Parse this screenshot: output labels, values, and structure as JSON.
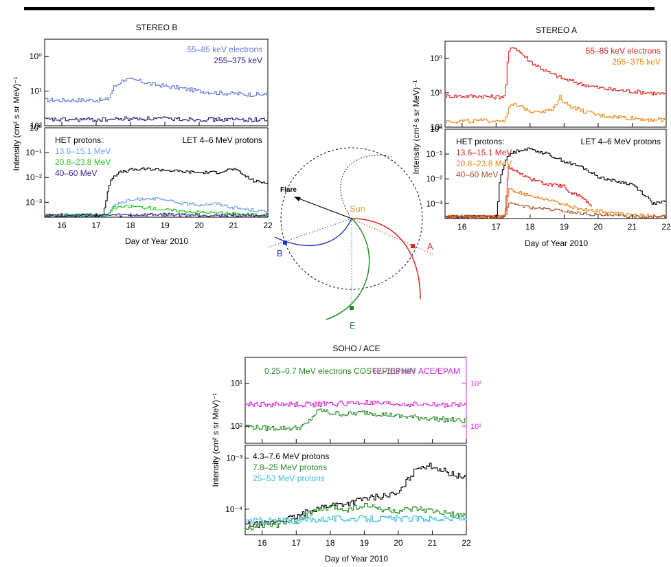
{
  "chart_data": [
    {
      "id": "stereo_b",
      "type": "line",
      "title": "STEREO B",
      "xlabel": "Day of Year 2010",
      "ylabel": "Intensity   (cm² s sr MeV)⁻¹",
      "xlim": [
        15.5,
        22
      ],
      "x_ticks": [
        "16",
        "17",
        "18",
        "19",
        "20",
        "21",
        "22"
      ],
      "panels": [
        {
          "name": "electrons",
          "ylim_log10": [
            0,
            2.5
          ],
          "y_ticks": [
            "10⁰",
            "10¹",
            "10²"
          ],
          "series": [
            {
              "name": "55–85 keV electrons",
              "color": "#6677dd",
              "x": [
                15.5,
                16.0,
                16.5,
                17.0,
                17.2,
                17.35,
                17.5,
                17.8,
                18.2,
                18.6,
                19.0,
                19.5,
                20.0,
                20.5,
                21.0,
                21.5,
                22.0
              ],
              "y": [
                5.5,
                5.5,
                5.5,
                5.5,
                5.5,
                6,
                13,
                22,
                20,
                16,
                14,
                12,
                10,
                9,
                8.5,
                8,
                8
              ]
            },
            {
              "name": "255–375 keV",
              "color": "#2e1a80",
              "x": [
                15.5,
                16.0,
                17.0,
                18.0,
                19.0,
                20.0,
                21.0,
                22.0
              ],
              "y": [
                1.5,
                1.5,
                1.5,
                1.6,
                1.6,
                1.55,
                1.5,
                1.5
              ]
            }
          ]
        },
        {
          "name": "protons",
          "ylim_log10": [
            -3.6,
            0
          ],
          "y_ticks": [
            "10⁰",
            "10⁻¹",
            "10⁻²",
            "10⁻³"
          ],
          "legend_header": "HET protons:",
          "series": [
            {
              "name": "LET 4–6 MeV protons",
              "color": "#000000",
              "x": [
                15.5,
                17.2,
                17.3,
                17.4,
                17.6,
                18.0,
                18.5,
                19.0,
                19.5,
                20.0,
                20.5,
                20.8,
                21.0,
                21.3,
                21.6,
                22.0
              ],
              "y": [
                0.0003,
                0.0003,
                0.002,
                0.008,
                0.015,
                0.02,
                0.022,
                0.02,
                0.017,
                0.016,
                0.016,
                0.02,
                0.022,
                0.012,
                0.007,
                0.006
              ]
            },
            {
              "name": "13.6–15.1 MeV",
              "color": "#6a9ff0",
              "x": [
                15.5,
                17.3,
                17.5,
                18.0,
                18.5,
                19.0,
                19.5,
                20.0,
                20.5,
                21.0,
                21.5,
                22.0
              ],
              "y": [
                0.0003,
                0.0003,
                0.0008,
                0.0012,
                0.0015,
                0.0012,
                0.0009,
                0.0008,
                0.0009,
                0.0006,
                0.0005,
                0.0004
              ]
            },
            {
              "name": "20.8–23.8 MeV",
              "color": "#22cc22",
              "x": [
                15.5,
                17.3,
                17.5,
                18.0,
                18.5,
                19.0,
                20.0,
                21.0,
                22.0
              ],
              "y": [
                0.0003,
                0.0003,
                0.0006,
                0.0007,
                0.0006,
                0.0005,
                0.0004,
                0.00035,
                0.0003
              ]
            },
            {
              "name": "40–60 MeV",
              "color": "#2e1a80",
              "x": [
                15.5,
                17.0,
                18.0,
                19.0,
                20.0,
                21.0,
                22.0
              ],
              "y": [
                0.0003,
                0.0003,
                0.0003,
                0.00032,
                0.0003,
                0.0003,
                0.0003
              ]
            }
          ]
        }
      ]
    },
    {
      "id": "stereo_a",
      "type": "line",
      "title": "STEREO A",
      "xlabel": "Day of Year 2010",
      "ylabel": "Intensity   (cm² s sr MeV)⁻¹",
      "xlim": [
        15.5,
        22
      ],
      "x_ticks": [
        "16",
        "17",
        "18",
        "19",
        "20",
        "21",
        "22"
      ],
      "panels": [
        {
          "name": "electrons",
          "ylim_log10": [
            0,
            2.5
          ],
          "y_ticks": [
            "10⁰",
            "10¹",
            "10²"
          ],
          "series": [
            {
              "name": "55–85 keV electrons",
              "color": "#e02020",
              "x": [
                15.5,
                16.0,
                16.5,
                17.0,
                17.25,
                17.35,
                17.5,
                17.7,
                18.0,
                18.5,
                19.0,
                19.5,
                20.0,
                20.5,
                21.0,
                21.5,
                22.0
              ],
              "y": [
                8,
                8,
                8,
                7.5,
                8,
                150,
                230,
                150,
                80,
                40,
                25,
                18,
                14,
                12,
                11,
                10,
                9
              ]
            },
            {
              "name": "255–375 keV",
              "color": "#e8840a",
              "x": [
                15.5,
                16.5,
                17.25,
                17.35,
                17.5,
                18.0,
                18.5,
                18.75,
                18.85,
                19.0,
                19.5,
                20.0,
                20.5,
                21.0,
                22.0
              ],
              "y": [
                1.5,
                1.5,
                1.6,
                3.5,
                4.5,
                3,
                3,
                4,
                9,
                5,
                3,
                2.2,
                2,
                1.8,
                1.6
              ]
            }
          ]
        },
        {
          "name": "protons",
          "ylim_log10": [
            -3.6,
            0
          ],
          "y_ticks": [
            "10⁰",
            "10⁻¹",
            "10⁻²",
            "10⁻³"
          ],
          "legend_header": "HET protons:",
          "series": [
            {
              "name": "LET 4–6 MeV protons",
              "color": "#000000",
              "x": [
                15.5,
                17.0,
                17.1,
                17.25,
                17.4,
                17.7,
                18.0,
                18.5,
                19.0,
                19.5,
                20.0,
                20.5,
                21.0,
                21.4,
                21.6,
                22.0
              ],
              "y": [
                0.0003,
                0.0003,
                0.01,
                0.05,
                0.1,
                0.15,
                0.16,
                0.1,
                0.05,
                0.03,
                0.012,
                0.008,
                0.006,
                0.002,
                0.001,
                0.0012
              ]
            },
            {
              "name": "13.6–15.1 MeV",
              "color": "#e02020",
              "x": [
                15.5,
                17.25,
                17.35,
                17.6,
                18.0,
                18.5,
                19.0,
                19.1,
                19.5,
                19.8
              ],
              "y": [
                0.0003,
                0.0003,
                0.03,
                0.02,
                0.01,
                0.006,
                0.005,
                0.003,
                0.002,
                0.0008
              ]
            },
            {
              "name": "20.8–23.8 MeV",
              "color": "#e8840a",
              "x": [
                15.5,
                17.25,
                17.35,
                17.6,
                18.0,
                18.5,
                19.0,
                19.5,
                20.0,
                20.5,
                21.0,
                22.0
              ],
              "y": [
                0.0003,
                0.0003,
                0.004,
                0.003,
                0.002,
                0.0015,
                0.0009,
                0.0006,
                0.0005,
                0.0004,
                0.00035,
                0.0003
              ]
            },
            {
              "name": "40–60 MeV",
              "color": "#a0522d",
              "x": [
                15.5,
                17.25,
                17.35,
                17.6,
                18.0,
                18.5,
                19.0,
                19.5,
                20.0,
                21.0,
                22.0
              ],
              "y": [
                0.0003,
                0.0003,
                0.001,
                0.0009,
                0.0007,
                0.0006,
                0.0005,
                0.0004,
                0.00035,
                0.0003,
                0.0003
              ]
            }
          ]
        }
      ]
    },
    {
      "id": "soho_ace",
      "type": "line",
      "title": "SOHO / ACE",
      "xlabel": "Day of Year 2010",
      "ylabel": "Intensity   (cm² s sr MeV)⁻¹",
      "xlim": [
        15.5,
        22
      ],
      "x_ticks": [
        "16",
        "17",
        "18",
        "19",
        "20",
        "21",
        "22"
      ],
      "panels": [
        {
          "name": "electrons",
          "ylim_log10": [
            0.6,
            2.6
          ],
          "y_ticks": [
            "10¹",
            "10²"
          ],
          "right_y_ticks": [
            "10¹",
            "10²"
          ],
          "right_axis_color": "#dd22dd",
          "series": [
            {
              "name": "0.25–0.7 MeV electrons COSTEP/EPHIN",
              "color": "#228b22",
              "x": [
                15.5,
                16.0,
                16.5,
                17.0,
                17.3,
                17.5,
                17.7,
                18.0,
                18.5,
                19.0,
                19.5,
                20.0,
                20.5,
                21.0,
                21.5,
                22.0
              ],
              "y": [
                10,
                9,
                9,
                9,
                11,
                18,
                24,
                20,
                19,
                21,
                19,
                17,
                16,
                15,
                14,
                13
              ]
            },
            {
              "name": "62–103 keV ACE/EPAM",
              "color": "#dd22dd",
              "x": [
                15.5,
                16.5,
                17.5,
                18.5,
                19.0,
                19.5,
                20.5,
                21.5,
                22.0
              ],
              "y": [
                32,
                32,
                32,
                34,
                35,
                33,
                32,
                31,
                31
              ]
            }
          ]
        },
        {
          "name": "protons",
          "ylim_log10": [
            -4.5,
            -2.75
          ],
          "y_ticks": [
            "10⁻³",
            "10⁻⁴"
          ],
          "series": [
            {
              "name": "4.3–7.6 MeV protons",
              "color": "#000000",
              "x": [
                15.5,
                16.0,
                16.5,
                17.0,
                17.5,
                18.0,
                18.5,
                19.0,
                19.5,
                20.0,
                20.3,
                20.6,
                21.0,
                21.5,
                22.0
              ],
              "y": [
                5e-05,
                5e-05,
                6e-05,
                7e-05,
                0.0001,
                0.00012,
                0.00013,
                0.00016,
                0.00018,
                0.0002,
                0.0004,
                0.0007,
                0.0007,
                0.0005,
                0.0004
              ]
            },
            {
              "name": "7.8–25 MeV protons",
              "color": "#228b22",
              "x": [
                15.5,
                16.0,
                16.5,
                17.0,
                17.5,
                18.0,
                18.5,
                19.0,
                19.5,
                20.0,
                20.5,
                21.0,
                21.5,
                22.0
              ],
              "y": [
                4e-05,
                5e-05,
                5e-05,
                6e-05,
                9e-05,
                0.00011,
                0.0001,
                0.00012,
                0.0001,
                9e-05,
                0.0001,
                9e-05,
                8e-05,
                7e-05
              ]
            },
            {
              "name": "25–53 MeV protons",
              "color": "#33bbdd",
              "x": [
                15.5,
                16.0,
                16.5,
                17.0,
                18.0,
                19.0,
                20.0,
                21.0,
                22.0
              ],
              "y": [
                6e-05,
                6e-05,
                6e-05,
                6e-05,
                6.5e-05,
                6.5e-05,
                6.5e-05,
                6.5e-05,
                6.5e-05
              ]
            }
          ]
        }
      ]
    }
  ],
  "diagram": {
    "sun_label": "Sun",
    "flare_label": "Flare",
    "b_label": "B",
    "a_label": "A",
    "e_label": "E",
    "sun_color": "#e8a040",
    "b_color": "#2233cc",
    "a_color": "#dd2222",
    "e_color": "#228b22"
  }
}
